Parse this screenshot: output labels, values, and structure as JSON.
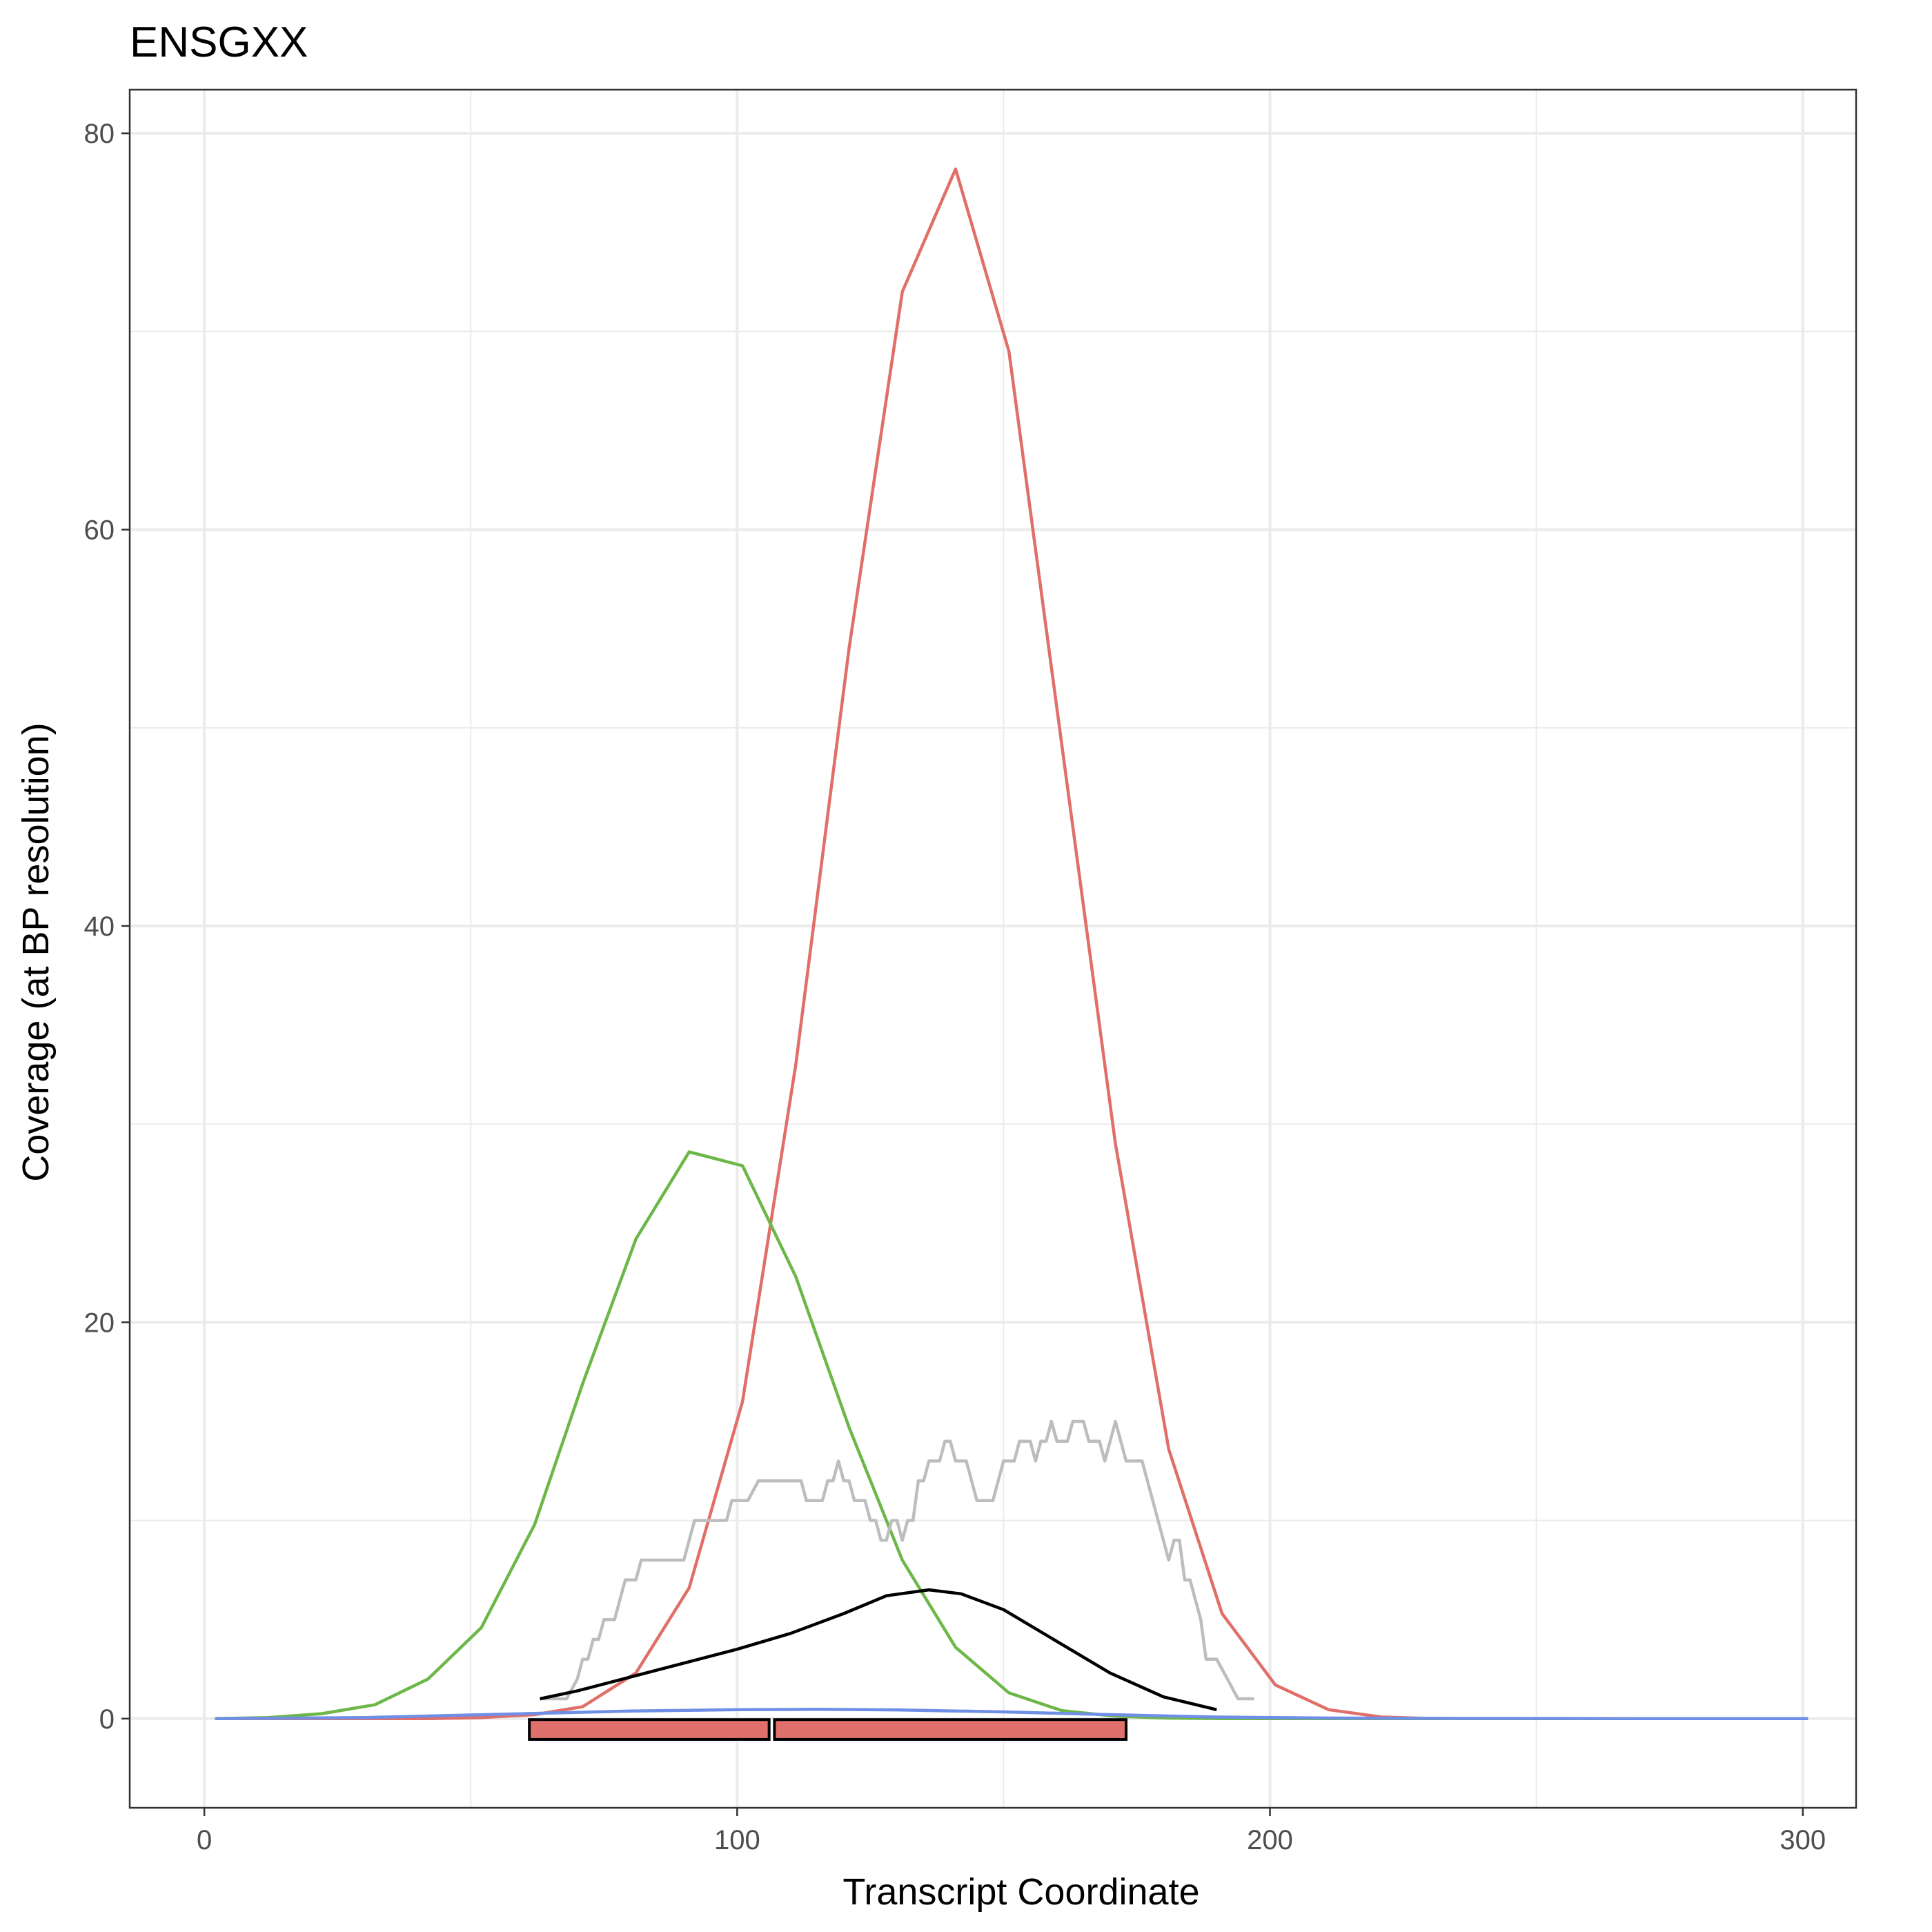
{
  "chart_data": {
    "type": "line",
    "title": "ENSGXX",
    "xlabel": "Transcript Coordinate",
    "ylabel": "Coverage (at BP resolution)",
    "xlim": [
      -14,
      310
    ],
    "ylim": [
      -4.5,
      82.2
    ],
    "x_ticks": [
      0,
      100,
      200,
      300
    ],
    "x_tick_labels": [
      "0",
      "100",
      "200",
      "300"
    ],
    "y_ticks": [
      0,
      20,
      40,
      60,
      80
    ],
    "y_tick_labels": [
      "0",
      "20",
      "40",
      "60",
      "80"
    ],
    "grid": true,
    "legend": "none",
    "colors": {
      "red": "#e06f69",
      "green": "#6db748",
      "blue": "#6f8fe6",
      "grey": "#bdbdbd",
      "black": "#000000",
      "panel_border": "#333333",
      "grid": "#ebebeb",
      "box_fill": "#e0706c"
    },
    "series": [
      {
        "color": "#e06f69",
        "x": [
          2,
          12,
          22,
          32,
          42,
          52,
          62,
          71,
          81,
          91,
          101,
          111,
          121,
          131,
          141,
          151,
          161,
          171,
          181,
          191,
          201,
          211,
          221,
          231,
          241,
          251,
          261,
          271,
          281,
          291,
          301
        ],
        "y": [
          0,
          0,
          0,
          0,
          0,
          0.05,
          0.2,
          0.6,
          2.3,
          6.6,
          16,
          33,
          54,
          72,
          78.2,
          69,
          49,
          29,
          13.6,
          5.3,
          1.7,
          0.45,
          0.08,
          0,
          0,
          0,
          0,
          0,
          0,
          0,
          0
        ]
      },
      {
        "color": "#6db748",
        "x": [
          2,
          12,
          22,
          32,
          42,
          52,
          62,
          71,
          81,
          91,
          101,
          111,
          121,
          131,
          141,
          151,
          161,
          171,
          181,
          191,
          201,
          211,
          221,
          231,
          241,
          251,
          261,
          271,
          281,
          291,
          301
        ],
        "y": [
          0,
          0.05,
          0.25,
          0.7,
          2,
          4.6,
          9.8,
          16.9,
          24.2,
          28.6,
          27.9,
          22.3,
          14.7,
          8,
          3.6,
          1.3,
          0.4,
          0.12,
          0.03,
          0,
          0,
          0,
          0,
          0,
          0,
          0,
          0,
          0,
          0,
          0,
          0
        ]
      },
      {
        "color": "#6f8fe6",
        "x": [
          2,
          30,
          60,
          80,
          100,
          115,
          130,
          150,
          170,
          190,
          210,
          240,
          270,
          301
        ],
        "y": [
          0,
          0.05,
          0.25,
          0.38,
          0.45,
          0.47,
          0.44,
          0.34,
          0.2,
          0.08,
          0.03,
          0.01,
          0,
          0
        ]
      },
      {
        "color": "#bdbdbd",
        "x": [
          63,
          68,
          70,
          71,
          72,
          73,
          74,
          75,
          76,
          77,
          78,
          79,
          80,
          81,
          82,
          83,
          84,
          86,
          88,
          90,
          91,
          92,
          93,
          94,
          96,
          98,
          99,
          100,
          101,
          102,
          104,
          105,
          106,
          108,
          110,
          112,
          113,
          114,
          116,
          117,
          118,
          119,
          120,
          121,
          122,
          124,
          125,
          126,
          127,
          128,
          129,
          130,
          131,
          132,
          133,
          134,
          135,
          136,
          137,
          138,
          139,
          140,
          141,
          142,
          143,
          144,
          145,
          146,
          147,
          148,
          149,
          150,
          151,
          152,
          153,
          154,
          155,
          156,
          157,
          158,
          159,
          160,
          161,
          162,
          163,
          164,
          165,
          166,
          167,
          168,
          169,
          170,
          171,
          172,
          173,
          174,
          175,
          176,
          177,
          178,
          179,
          180,
          181,
          182,
          183,
          184,
          185,
          186,
          187,
          188,
          190,
          192,
          194,
          197
        ],
        "y": [
          1,
          1,
          2,
          3,
          3,
          4,
          4,
          5,
          5,
          5,
          6,
          7,
          7,
          7,
          8,
          8,
          8,
          8,
          8,
          8,
          9,
          10,
          10,
          10,
          10,
          10,
          11,
          11,
          11,
          11,
          12,
          12,
          12,
          12,
          12,
          12,
          11,
          11,
          11,
          12,
          12,
          13,
          12,
          12,
          11,
          11,
          10,
          10,
          9,
          9,
          10,
          10,
          9,
          10,
          10,
          12,
          12,
          13,
          13,
          13,
          14,
          14,
          13,
          13,
          13,
          12,
          11,
          11,
          11,
          11,
          12,
          13,
          13,
          13,
          14,
          14,
          14,
          13,
          14,
          14,
          15,
          14,
          14,
          14,
          15,
          15,
          15,
          14,
          14,
          14,
          13,
          14,
          15,
          14,
          13,
          13,
          13,
          13,
          12,
          11,
          10,
          9,
          8,
          9,
          9,
          7,
          7,
          6,
          5,
          3,
          3,
          2,
          1,
          1
        ]
      },
      {
        "color": "#000000",
        "x": [
          63,
          70,
          80,
          90,
          100,
          110,
          120,
          128,
          136,
          142,
          150,
          160,
          170,
          180,
          190
        ],
        "y": [
          1,
          1.4,
          2.1,
          2.8,
          3.5,
          4.3,
          5.3,
          6.2,
          6.5,
          6.3,
          5.5,
          3.9,
          2.3,
          1.1,
          0.45
        ]
      }
    ],
    "feature_boxes": [
      {
        "x0": 61,
        "x1": 106,
        "y0": -1.05,
        "y1": -0.05
      },
      {
        "x0": 107,
        "x1": 173,
        "y0": -1.05,
        "y1": -0.05
      }
    ]
  }
}
